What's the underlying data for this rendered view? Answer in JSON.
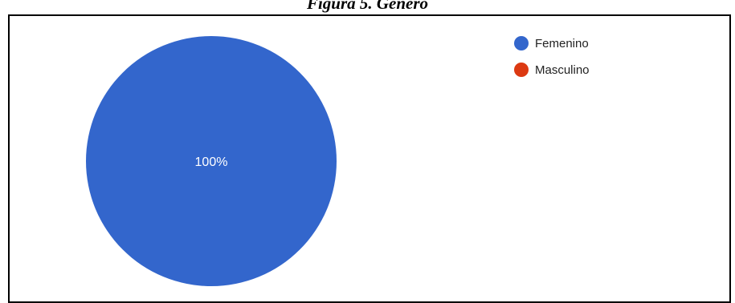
{
  "caption": "Figura 5. Género",
  "chart_data": {
    "type": "pie",
    "categories": [
      "Femenino",
      "Masculino"
    ],
    "values": [
      100,
      0
    ],
    "colors": [
      "#3366cc",
      "#dc3912"
    ],
    "data_labels": [
      "100%"
    ],
    "legend": "top-right",
    "title": ""
  }
}
